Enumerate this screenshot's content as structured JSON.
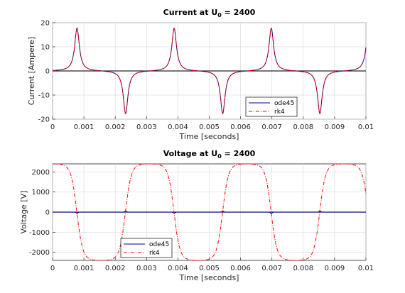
{
  "chart_data": [
    {
      "type": "line",
      "title": "Current at U",
      "title_subscript": "0",
      "title_suffix": " = 2400",
      "xlabel": "Time [seconds]",
      "ylabel": "Current [Ampere]",
      "xlim": [
        0,
        0.01
      ],
      "ylim": [
        -20,
        20
      ],
      "xticks": [
        "0",
        "0.001",
        "0.002",
        "0.003",
        "0.004",
        "0.005",
        "0.006",
        "0.007",
        "0.008",
        "0.009",
        "0.01"
      ],
      "yticks": [
        "-20",
        "-10",
        "0",
        "10",
        "20"
      ],
      "ytick_values": [
        -20,
        -10,
        0,
        10,
        20
      ],
      "grid": true,
      "legend_position": "bottom-right",
      "series": [
        {
          "name": "ode45",
          "color": "#00008b",
          "style": "solid"
        },
        {
          "name": "rk4",
          "color": "#ff0000",
          "style": "dash-dot"
        }
      ],
      "peaks": [
        {
          "t": 0.00078,
          "value": 17.8
        },
        {
          "t": 0.00233,
          "value": -17.8
        },
        {
          "t": 0.00388,
          "value": 17.8
        },
        {
          "t": 0.00543,
          "value": -17.8
        },
        {
          "t": 0.00698,
          "value": 17.8
        },
        {
          "t": 0.00853,
          "value": -17.8
        },
        {
          "t": 0.01008,
          "value": 17.8
        }
      ]
    },
    {
      "type": "line",
      "title": "Voltage at U",
      "title_subscript": "0",
      "title_suffix": " = 2400",
      "xlabel": "Time [seconds]",
      "ylabel": "Voltage [V]",
      "xlim": [
        0,
        0.01
      ],
      "ylim": [
        -2400,
        2400
      ],
      "xticks": [
        "0",
        "0.001",
        "0.002",
        "0.003",
        "0.004",
        "0.005",
        "0.006",
        "0.007",
        "0.008",
        "0.009",
        "0.01"
      ],
      "yticks": [
        "-2000",
        "-1000",
        "0",
        "1000",
        "2000"
      ],
      "ytick_values": [
        -2000,
        -1000,
        0,
        1000,
        2000
      ],
      "grid": true,
      "legend_position": "bottom-left",
      "series": [
        {
          "name": "ode45",
          "color": "#00008b",
          "style": "solid"
        },
        {
          "name": "rk4",
          "color": "#ff0000",
          "style": "dash-dot"
        }
      ],
      "amplitude": 2400,
      "period": 0.0031,
      "zero_crossings": [
        0.00078,
        0.00233,
        0.00388,
        0.00543,
        0.00698,
        0.00853
      ]
    }
  ]
}
